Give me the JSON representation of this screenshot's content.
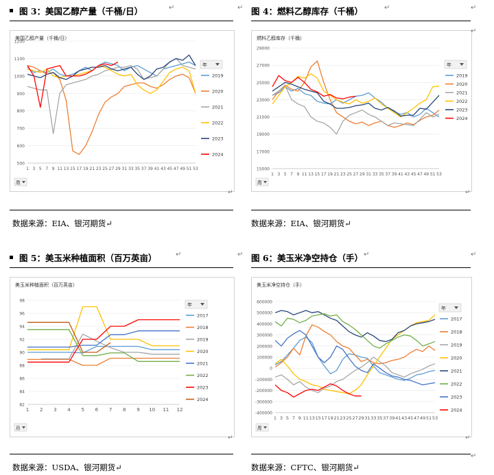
{
  "page": {
    "top_marks": [
      "↵",
      "↵",
      "↵",
      "↵"
    ],
    "mid_marks": [
      "↵",
      "↵",
      "↵",
      "↵"
    ],
    "bottom_marks": [
      "↵",
      "↵"
    ]
  },
  "chart_data": [
    {
      "id": "fig3",
      "fig_title": "图 3：美国乙醇产量（千桶/日）",
      "title": "美国乙醇产量（千桶/日）",
      "type": "line",
      "source": "数据来源：EIA、银河期货",
      "legend_title": "年",
      "field_button": "周",
      "x": [
        1,
        3,
        5,
        7,
        9,
        11,
        13,
        15,
        17,
        19,
        21,
        23,
        25,
        27,
        29,
        31,
        33,
        35,
        37,
        39,
        41,
        43,
        45,
        47,
        49,
        51,
        53
      ],
      "x_ticks": [
        "1",
        "3",
        "5",
        "7",
        "9",
        "11",
        "13",
        "15",
        "17",
        "19",
        "21",
        "23",
        "25",
        "27",
        "29",
        "31",
        "33",
        "35",
        "37",
        "39",
        "41",
        "43",
        "45",
        "47",
        "49",
        "51",
        "53"
      ],
      "ylim": [
        500,
        1200
      ],
      "y_ticks": [
        "500",
        "600",
        "700",
        "800",
        "900",
        "1000",
        "1100",
        "1200"
      ],
      "series": [
        {
          "name": "2019",
          "color": "#5b9bd5",
          "values": [
            1050,
            1020,
            1030,
            1020,
            1040,
            1010,
            1000,
            1010,
            1030,
            1050,
            1030,
            1060,
            1080,
            1070,
            1060,
            1030,
            1050,
            1060,
            1040,
            1020,
            1000,
            1040,
            1050,
            1060,
            1070,
            1080,
            1060
          ]
        },
        {
          "name": "2020",
          "color": "#ed7d31",
          "values": [
            1060,
            1050,
            1030,
            1010,
            1020,
            980,
            860,
            570,
            550,
            600,
            680,
            780,
            850,
            880,
            900,
            940,
            950,
            960,
            960,
            940,
            930,
            950,
            980,
            1000,
            1010,
            990,
            900
          ]
        },
        {
          "name": "2021",
          "color": "#a5a5a5",
          "values": [
            940,
            930,
            920,
            920,
            670,
            900,
            950,
            960,
            970,
            980,
            1000,
            1010,
            1030,
            1040,
            1050,
            1050,
            1060,
            1040,
            980,
            990,
            1000,
            1040,
            1080,
            1100,
            1060,
            1050,
            1040
          ]
        },
        {
          "name": "2022",
          "color": "#ffc000",
          "values": [
            1040,
            1030,
            1020,
            1040,
            1000,
            990,
            1000,
            1000,
            1010,
            1020,
            1030,
            1060,
            1050,
            1030,
            1010,
            1000,
            1010,
            950,
            920,
            900,
            920,
            970,
            1020,
            1040,
            1050,
            1030,
            900
          ]
        },
        {
          "name": "2023",
          "color": "#264478",
          "values": [
            1010,
            1000,
            990,
            1010,
            1020,
            990,
            980,
            1000,
            1030,
            1040,
            1050,
            1050,
            1060,
            1040,
            1030,
            1040,
            1050,
            1010,
            980,
            1000,
            1040,
            1050,
            1080,
            1100,
            1090,
            1120,
            1060
          ]
        },
        {
          "name": "2024",
          "color": "#ff0000",
          "values": [
            1060,
            1000,
            820,
            1040,
            1050,
            1060,
            1000,
            1000,
            1000,
            1010,
            1030,
            1060,
            1070,
            1060,
            1080,
            null,
            null,
            null,
            null,
            null,
            null,
            null,
            null,
            null,
            null,
            null,
            null
          ]
        }
      ]
    },
    {
      "id": "fig4",
      "fig_title": "图 4：燃料乙醇库存（千桶）",
      "title": "燃料乙醇库存（千桶）",
      "type": "line",
      "source": "数据来源：EIA、银河期货",
      "legend_title": "年",
      "field_button": "周",
      "x": [
        1,
        3,
        5,
        7,
        9,
        11,
        13,
        15,
        17,
        19,
        21,
        23,
        25,
        27,
        29,
        31,
        33,
        35,
        37,
        39,
        41,
        43,
        45,
        47,
        49,
        51,
        53
      ],
      "x_ticks": [
        "1",
        "3",
        "5",
        "7",
        "9",
        "11",
        "13",
        "15",
        "17",
        "19",
        "21",
        "23",
        "25",
        "27",
        "29",
        "31",
        "33",
        "35",
        "37",
        "39",
        "41",
        "43",
        "45",
        "47",
        "49",
        "51",
        "53"
      ],
      "ylim": [
        15000,
        29000
      ],
      "y_ticks": [
        "15000",
        "17000",
        "19000",
        "21000",
        "23000",
        "25000",
        "27000",
        "29000"
      ],
      "series": [
        {
          "name": "2019",
          "color": "#5b9bd5",
          "values": [
            23500,
            23800,
            24500,
            24000,
            24300,
            23700,
            23500,
            22800,
            22600,
            22500,
            23000,
            22600,
            23000,
            23400,
            23500,
            23800,
            23200,
            22700,
            22000,
            21600,
            21300,
            21500,
            21000,
            21300,
            22000,
            21500,
            21000
          ]
        },
        {
          "name": "2020",
          "color": "#ed7d31",
          "values": [
            23000,
            24000,
            24700,
            24200,
            24000,
            25000,
            26800,
            27500,
            25000,
            23000,
            21500,
            21000,
            20500,
            20200,
            20400,
            20000,
            20300,
            20500,
            20000,
            19800,
            20000,
            20300,
            20100,
            20600,
            21000,
            21200,
            21800
          ]
        },
        {
          "name": "2021",
          "color": "#a5a5a5",
          "values": [
            23500,
            24000,
            24600,
            23000,
            22500,
            22200,
            21000,
            20500,
            20300,
            19800,
            19000,
            20500,
            21200,
            21500,
            21800,
            21300,
            21000,
            20500,
            20000,
            20300,
            20200,
            20100,
            20000,
            20700,
            21500,
            21000,
            21300
          ]
        },
        {
          "name": "2022",
          "color": "#ffc000",
          "values": [
            22500,
            23500,
            24500,
            25000,
            25700,
            25500,
            26000,
            25500,
            24000,
            23500,
            23000,
            22700,
            22500,
            23000,
            22600,
            22800,
            23200,
            22500,
            22000,
            21500,
            21000,
            21500,
            22000,
            22600,
            23000,
            24500,
            24600
          ]
        },
        {
          "name": "2023",
          "color": "#264478",
          "values": [
            24000,
            24500,
            25000,
            24800,
            24500,
            24200,
            24000,
            23800,
            22800,
            22500,
            22000,
            22000,
            22100,
            22300,
            22400,
            22600,
            22000,
            21800,
            22100,
            21700,
            21100,
            21200,
            21200,
            22000,
            21900,
            22700,
            23500
          ]
        },
        {
          "name": "2024",
          "color": "#ff0000",
          "values": [
            24500,
            25800,
            25200,
            25000,
            25600,
            25000,
            24200,
            23900,
            23400,
            23600,
            23200,
            23100,
            23300,
            23400,
            null,
            null,
            null,
            null,
            null,
            null,
            null,
            null,
            null,
            null,
            null,
            null,
            null
          ]
        }
      ]
    },
    {
      "id": "fig5",
      "fig_title": "图 5：美玉米种植面积（百万英亩）",
      "title": "美玉米种植面积（百万英亩）",
      "type": "line",
      "source": "数据来源：USDA、银河期货",
      "legend_title": "年",
      "field_button": "月",
      "x": [
        1,
        2,
        3,
        4,
        5,
        6,
        7,
        8,
        9,
        10,
        11,
        12
      ],
      "x_ticks": [
        "1",
        "2",
        "3",
        "4",
        "5",
        "6",
        "7",
        "8",
        "9",
        "10",
        "11",
        "12"
      ],
      "ylim": [
        82,
        98
      ],
      "y_ticks": [
        "82",
        "84",
        "86",
        "88",
        "90",
        "92",
        "94",
        "96",
        "98"
      ],
      "series": [
        {
          "name": "2017",
          "color": "#5b9bd5",
          "values": [
            90,
            90,
            90,
            90,
            89.9,
            90.9,
            90.9,
            90.9,
            90.9,
            90.4,
            90.4,
            90.4
          ]
        },
        {
          "name": "2018",
          "color": "#ed7d31",
          "values": [
            88.9,
            88.9,
            88.9,
            88.9,
            88,
            88,
            89.1,
            89.1,
            89.1,
            89.1,
            89.1,
            89.1
          ]
        },
        {
          "name": "2019",
          "color": "#a5a5a5",
          "values": [
            null,
            89,
            89,
            89,
            92.8,
            91.7,
            90.7,
            90,
            90,
            89.7,
            89.7,
            89.7
          ]
        },
        {
          "name": "2020",
          "color": "#ffc000",
          "values": [
            90.4,
            90.4,
            90.4,
            90.4,
            97,
            97,
            92,
            92,
            92,
            91,
            91,
            91
          ]
        },
        {
          "name": "2021",
          "color": "#4472c4",
          "values": [
            90.8,
            90.8,
            90.8,
            90.8,
            91.1,
            91.1,
            92.7,
            92.7,
            93.3,
            93.3,
            93.3,
            93.3
          ]
        },
        {
          "name": "2022",
          "color": "#70ad47",
          "values": [
            93.5,
            93.5,
            93.5,
            93.5,
            89.5,
            89.5,
            89.9,
            89.9,
            88.6,
            88.6,
            88.6,
            88.6
          ]
        },
        {
          "name": "2023",
          "color": "#ff0000",
          "values": [
            88.5,
            88.5,
            88.5,
            88.5,
            92,
            92,
            94,
            94,
            95,
            95,
            95,
            95
          ]
        },
        {
          "name": "2024",
          "color": "#c55a11",
          "values": [
            94.6,
            94.6,
            94.6,
            94.6,
            90,
            90,
            91.5,
            null,
            null,
            null,
            null,
            null
          ]
        }
      ]
    },
    {
      "id": "fig6",
      "fig_title": "图 6：美玉米净空持仓（手）",
      "title": "美玉米净空持仓（手）",
      "type": "line",
      "source": "数据来源：CFTC、银河期货",
      "legend_title": "年",
      "field_button": "周",
      "x": [
        1,
        3,
        5,
        7,
        9,
        11,
        13,
        15,
        17,
        19,
        21,
        23,
        25,
        27,
        29,
        31,
        33,
        35,
        37,
        39,
        41,
        43,
        45,
        47,
        49,
        51,
        53
      ],
      "x_ticks": [
        "1",
        "3",
        "5",
        "7",
        "9",
        "11",
        "13",
        "15",
        "17",
        "19",
        "21",
        "23",
        "25",
        "27",
        "29",
        "31",
        "33",
        "35",
        "37",
        "39",
        "41",
        "43",
        "45",
        "47",
        "49",
        "51",
        "53"
      ],
      "ylim": [
        -400000,
        600000
      ],
      "y_ticks": [
        "-400000",
        "-300000",
        "-200000",
        "-100000",
        "0",
        "100000",
        "200000",
        "300000",
        "400000",
        "500000",
        "600000"
      ],
      "series": [
        {
          "name": "2017",
          "color": "#5b9bd5",
          "values": [
            30000,
            60000,
            120000,
            180000,
            250000,
            280000,
            230000,
            100000,
            20000,
            -50000,
            -20000,
            80000,
            130000,
            120000,
            100000,
            90000,
            20000,
            -40000,
            -60000,
            -80000,
            -100000,
            -110000,
            -90000,
            -60000,
            -50000,
            -30000,
            -20000
          ]
        },
        {
          "name": "2018",
          "color": "#ed7d31",
          "values": [
            10000,
            50000,
            100000,
            180000,
            120000,
            290000,
            390000,
            370000,
            330000,
            300000,
            240000,
            200000,
            180000,
            120000,
            60000,
            80000,
            50000,
            40000,
            50000,
            70000,
            80000,
            100000,
            140000,
            170000,
            150000,
            200000,
            160000
          ]
        },
        {
          "name": "2019",
          "color": "#a5a5a5",
          "values": [
            -80000,
            -60000,
            -100000,
            -150000,
            -120000,
            -170000,
            -200000,
            -220000,
            -180000,
            -160000,
            -120000,
            -100000,
            -60000,
            -20000,
            10000,
            50000,
            100000,
            60000,
            20000,
            -40000,
            -60000,
            -80000,
            -50000,
            -30000,
            -10000,
            20000,
            40000
          ]
        },
        {
          "name": "2020",
          "color": "#ffc000",
          "values": [
            40000,
            80000,
            20000,
            -50000,
            -100000,
            -120000,
            -150000,
            -160000,
            -190000,
            -200000,
            -210000,
            -220000,
            -230000,
            -200000,
            -150000,
            -60000,
            20000,
            100000,
            180000,
            260000,
            300000,
            340000,
            380000,
            410000,
            420000,
            430000,
            480000
          ]
        },
        {
          "name": "2021",
          "color": "#264478",
          "values": [
            500000,
            520000,
            510000,
            480000,
            500000,
            520000,
            500000,
            510000,
            480000,
            450000,
            430000,
            380000,
            330000,
            300000,
            280000,
            320000,
            290000,
            250000,
            240000,
            260000,
            320000,
            340000,
            380000,
            400000,
            410000,
            420000,
            440000
          ]
        },
        {
          "name": "2022",
          "color": "#70ad47",
          "values": [
            420000,
            380000,
            450000,
            440000,
            410000,
            430000,
            470000,
            480000,
            490000,
            470000,
            480000,
            420000,
            390000,
            350000,
            300000,
            250000,
            200000,
            180000,
            220000,
            250000,
            280000,
            300000,
            290000,
            250000,
            200000,
            220000,
            240000
          ]
        },
        {
          "name": "2023",
          "color": "#4472c4",
          "values": [
            250000,
            200000,
            270000,
            310000,
            340000,
            300000,
            200000,
            100000,
            50000,
            100000,
            200000,
            170000,
            90000,
            20000,
            -20000,
            -40000,
            40000,
            0,
            -40000,
            -70000,
            -80000,
            -100000,
            -110000,
            -130000,
            -150000,
            -140000,
            -130000
          ]
        },
        {
          "name": "2024",
          "color": "#ff0000",
          "values": [
            -150000,
            -200000,
            -220000,
            -260000,
            -230000,
            -200000,
            -190000,
            -200000,
            -170000,
            -140000,
            -160000,
            -200000,
            -230000,
            -250000,
            -250000,
            null,
            null,
            null,
            null,
            null,
            null,
            null,
            null,
            null,
            null,
            null,
            null
          ]
        }
      ]
    }
  ]
}
